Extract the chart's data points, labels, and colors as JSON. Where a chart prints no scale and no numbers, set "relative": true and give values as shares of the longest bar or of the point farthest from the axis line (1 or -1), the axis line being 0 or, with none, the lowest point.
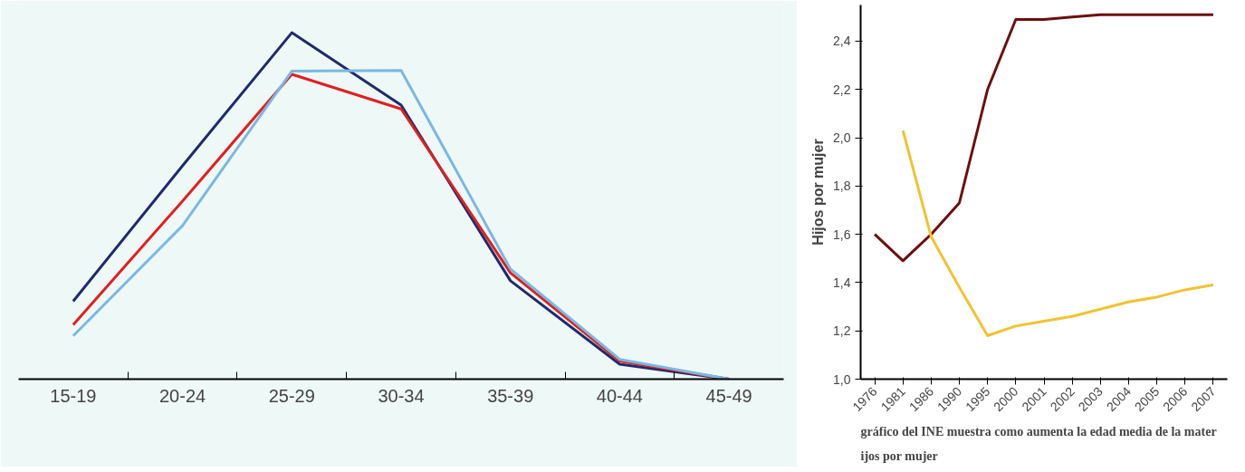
{
  "chart_data": [
    {
      "type": "line",
      "relative": true,
      "categories": [
        "15-19",
        "20-24",
        "25-29",
        "30-34",
        "35-39",
        "40-44",
        "45-49"
      ],
      "series": [
        {
          "color": "#1f2a6e",
          "values": [
            0.225,
            0.616,
            1.0,
            0.791,
            0.284,
            0.043,
            0.0
          ]
        },
        {
          "color": "#e02020",
          "values": [
            0.157,
            0.514,
            0.88,
            0.78,
            0.307,
            0.052,
            0.0
          ]
        },
        {
          "color": "#7ab8e0",
          "values": [
            0.125,
            0.443,
            0.889,
            0.891,
            0.318,
            0.057,
            0.0
          ]
        }
      ],
      "tick_labels": "x"
    },
    {
      "type": "line",
      "ylabel": "Hijos por mujer",
      "categories": [
        "1976",
        "1981",
        "1986",
        "1990",
        "1995",
        "2000",
        "2001",
        "2002",
        "2003",
        "2004",
        "2005",
        "2006",
        "2007"
      ],
      "series": [
        {
          "color": "#6b0f0f",
          "values": [
            1.6,
            1.49,
            1.6,
            1.73,
            2.2,
            2.49,
            2.49,
            2.5,
            2.51,
            2.51,
            2.51,
            2.51,
            2.51
          ]
        },
        {
          "color": "#f2c230",
          "values": [
            null,
            2.03,
            1.59,
            1.38,
            1.18,
            1.22,
            1.24,
            1.26,
            1.29,
            1.32,
            1.34,
            1.37,
            1.39
          ]
        }
      ],
      "ylim": [
        1.0,
        2.55
      ],
      "yticks": [
        {
          "value": 1.0,
          "label": "1,0"
        },
        {
          "value": 1.2,
          "label": "1,2"
        },
        {
          "value": 1.4,
          "label": "1,4"
        },
        {
          "value": 1.6,
          "label": "1,6"
        },
        {
          "value": 1.8,
          "label": "1,8"
        },
        {
          "value": 2.0,
          "label": "2,0"
        },
        {
          "value": 2.2,
          "label": "2,2"
        },
        {
          "value": 2.4,
          "label": "2,4"
        }
      ],
      "annotations": [
        "gráfico del INE muestra como aumenta la edad media de la mater",
        "ijos por mujer"
      ],
      "grid": false
    }
  ]
}
